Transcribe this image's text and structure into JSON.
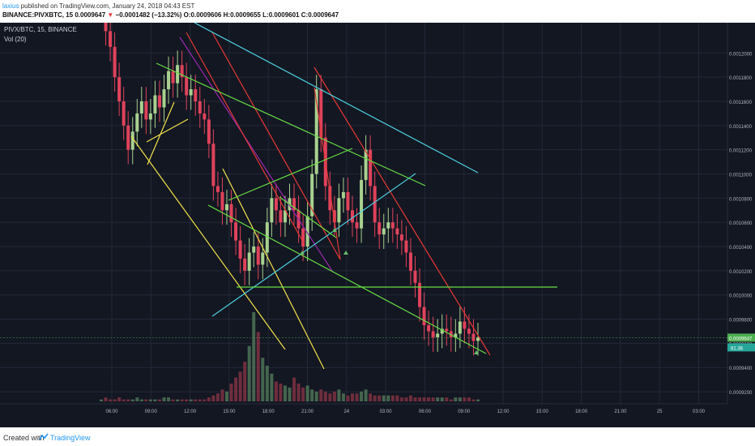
{
  "header": {
    "author": "laxius",
    "published": "published on TradingView.com, January 24, 2018 04:43 EST",
    "ticker": "BINANCE:PIVXBTC, 15",
    "last": "0.0009647",
    "change_arrow": "▼",
    "change": "−0.0001482 (−13.32%)",
    "o_label": "O:",
    "o": "0.0009606",
    "h_label": "H:",
    "h": "0.0009655",
    "l_label": "L:",
    "l": "0.0009601",
    "c_label": "C:",
    "c": "0.0009647"
  },
  "legend": {
    "symbol": "PIVX/BTC, 15, BINANCE",
    "volume": "Vol (20)"
  },
  "footer": {
    "created_with": "Created with",
    "brand": "TradingView"
  },
  "colors": {
    "background": "#131722",
    "up": "#a8d18f",
    "down": "#e0425b",
    "grid": "#232838",
    "text": "#b2b5be"
  },
  "chart_data": {
    "type": "candlestick",
    "ylim": [
      0.00091,
      0.001225
    ],
    "y_ticks": [
      "0.0012000",
      "0.0011800",
      "0.0011600",
      "0.0011400",
      "0.0011200",
      "0.0011000",
      "0.0010800",
      "0.0010600",
      "0.0010400",
      "0.0010200",
      "0.0010000",
      "0.0009800",
      "0.0009600",
      "0.0009400",
      "0.0009200"
    ],
    "x_ticks": [
      "06:00",
      "09:00",
      "12:00",
      "15:00",
      "18:00",
      "21:00",
      "24",
      "03:00",
      "06:00",
      "09:00",
      "12:00",
      "15:00",
      "18:00",
      "21:00",
      "25",
      "03:00"
    ],
    "current_price": "0.0009647",
    "volume_label": "81.36",
    "close_path": [
      0.001225,
      0.001218,
      0.001205,
      0.00118,
      0.00116,
      0.00114,
      0.00112,
      0.001135,
      0.00115,
      0.00116,
      0.001145,
      0.00115,
      0.001165,
      0.001155,
      0.00117,
      0.001185,
      0.001175,
      0.00119,
      0.00118,
      0.001165,
      0.00117,
      0.00116,
      0.00115,
      0.001145,
      0.001125,
      0.00109,
      0.001085,
      0.00107,
      0.001075,
      0.00106,
      0.001045,
      0.00103,
      0.00102,
      0.001035,
      0.00104,
      0.001025,
      0.001035,
      0.00106,
      0.00108,
      0.00107,
      0.00106,
      0.00107,
      0.00108,
      0.00107,
      0.001055,
      0.00104,
      0.001065,
      0.0011,
      0.00117,
      0.00113,
      0.00109,
      0.00107,
      0.00106,
      0.00108,
      0.001085,
      0.00107,
      0.00106,
      0.001055,
      0.001095,
      0.00112,
      0.00109,
      0.00106,
      0.00105,
      0.001055,
      0.00106,
      0.001055,
      0.00105,
      0.001045,
      0.001035,
      0.00102,
      0.00101,
      0.00099,
      0.000975,
      0.00097,
      0.000965,
      0.000968,
      0.000972,
      0.00097,
      0.000965,
      0.000968,
      0.000978,
      0.000972,
      0.000968,
      0.000962,
      0.000965
    ],
    "volume_path": [
      1,
      2,
      1,
      1,
      2,
      1,
      1,
      1,
      2,
      1,
      1,
      1,
      1,
      1,
      2,
      2,
      1,
      1,
      1,
      1,
      1,
      1,
      1,
      1,
      2,
      3,
      4,
      6,
      5,
      9,
      12,
      15,
      20,
      28,
      45,
      35,
      22,
      18,
      14,
      10,
      9,
      8,
      7,
      12,
      9,
      7,
      8,
      6,
      5,
      6,
      5,
      4,
      5,
      6,
      4,
      3,
      4,
      4,
      5,
      6,
      4,
      3,
      3,
      3,
      3,
      3,
      3,
      2,
      2,
      3,
      2,
      2,
      2,
      2,
      2,
      2,
      2,
      2,
      1,
      2,
      2,
      2,
      2,
      1,
      1
    ]
  }
}
